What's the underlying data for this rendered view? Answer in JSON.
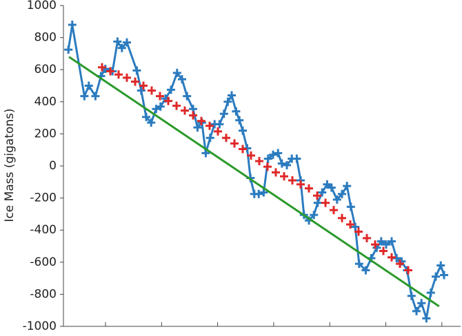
{
  "chart_data": {
    "type": "line",
    "y_label": "Ice Mass (gigatons)",
    "xlim": [
      0,
      72
    ],
    "ylim": [
      -1000,
      1000
    ],
    "yticks": [
      -1000,
      -800,
      -600,
      -400,
      -200,
      0,
      200,
      400,
      600,
      800,
      1000
    ],
    "grid": false,
    "series": [
      {
        "color": "#2b7bbf",
        "marker": "plus",
        "line": true,
        "x": [
          0.9,
          1.6,
          3.8,
          4.6,
          5.8,
          6.8,
          7.6,
          8.9,
          9.8,
          10.6,
          11.5,
          13.3,
          14.1,
          15,
          15.9,
          16.8,
          17.6,
          18.5,
          19.5,
          20.6,
          21.5,
          22.4,
          23.5,
          24.3,
          25.1,
          25.8,
          26.6,
          27.4,
          28.3,
          29.1,
          29.8,
          30.5,
          31.3,
          31.9,
          32.5,
          33.3,
          33.9,
          34.6,
          35.4,
          36.3,
          37.1,
          38,
          38.9,
          39.6,
          40.5,
          41.4,
          42.3,
          43,
          43.6,
          44.5,
          45.4,
          46.1,
          46.9,
          47.8,
          48.6,
          49.6,
          50.5,
          51.4,
          52.1,
          52.9,
          53.6,
          54.8,
          55.8,
          56.8,
          57.6,
          58.5,
          59.5,
          60.4,
          61.3,
          62.3,
          63.1,
          64,
          64.9,
          65.8,
          66.6,
          67.5,
          68.4,
          69
        ],
        "values": [
          725,
          880,
          435,
          500,
          435,
          560,
          605,
          590,
          775,
          735,
          770,
          595,
          470,
          305,
          270,
          355,
          370,
          420,
          475,
          580,
          540,
          435,
          355,
          240,
          270,
          80,
          175,
          260,
          260,
          325,
          400,
          440,
          340,
          285,
          220,
          110,
          -75,
          -175,
          -175,
          -165,
          45,
          70,
          80,
          15,
          5,
          45,
          45,
          -90,
          -305,
          -340,
          -305,
          -230,
          -165,
          -115,
          -135,
          -210,
          -175,
          -125,
          -255,
          -380,
          -610,
          -650,
          -575,
          -510,
          -470,
          -490,
          -470,
          -575,
          -595,
          -650,
          -810,
          -905,
          -855,
          -950,
          -790,
          -690,
          -620,
          -680
        ]
      },
      {
        "color": "#e02828",
        "marker": "plus",
        "line": false,
        "x": [
          7,
          8.5,
          10,
          11.5,
          13,
          14.5,
          16,
          17.5,
          19,
          20.5,
          22,
          23.5,
          25,
          26.5,
          28,
          29.5,
          31,
          32.5,
          34,
          35.5,
          37,
          38.5,
          40,
          41.5,
          43,
          44.5,
          46,
          47.5,
          49,
          50.5,
          52,
          53.5,
          55,
          56.5,
          58,
          59.5,
          61,
          62.5
        ],
        "values": [
          615,
          590,
          570,
          550,
          525,
          500,
          470,
          435,
          405,
          375,
          345,
          315,
          280,
          250,
          215,
          175,
          140,
          105,
          65,
          30,
          -5,
          -40,
          -65,
          -90,
          -115,
          -140,
          -185,
          -230,
          -275,
          -325,
          -365,
          -410,
          -450,
          -490,
          -530,
          -570,
          -610,
          -650
        ]
      },
      {
        "color": "#2a9a2a",
        "marker": "none",
        "line": true,
        "x": [
          1,
          68.1
        ],
        "values": [
          680,
          -875
        ]
      }
    ]
  }
}
